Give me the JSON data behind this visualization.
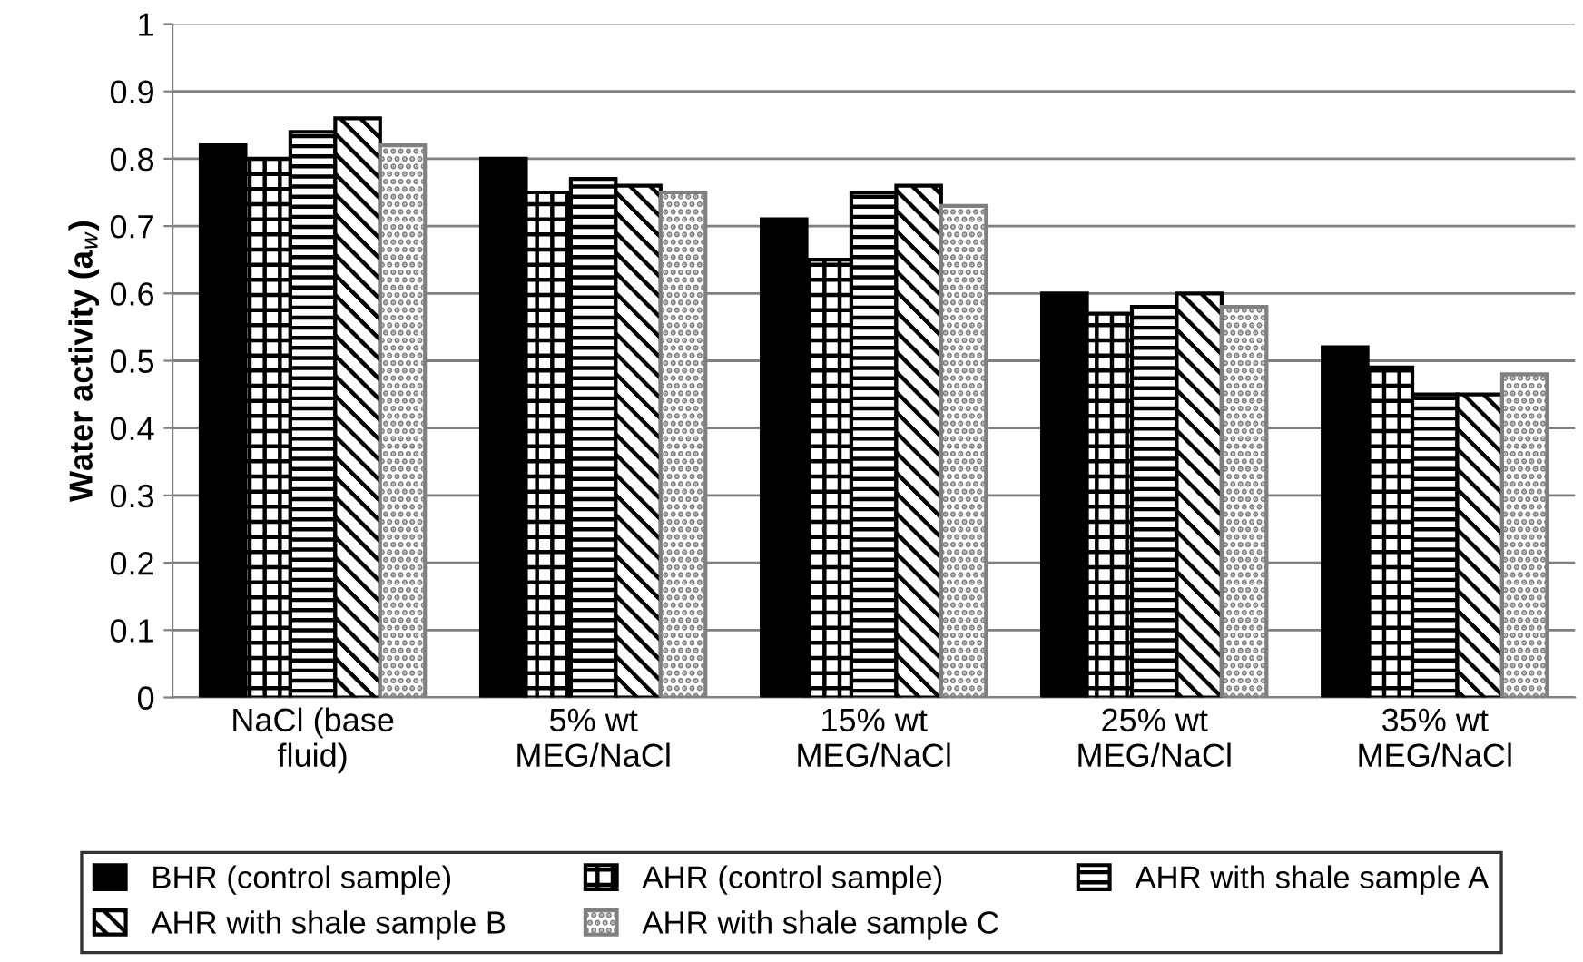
{
  "chart_data": {
    "type": "bar",
    "ylabel": "Water activity (a$_{w}$)",
    "categories": [
      "NaCl (base\nfluid)",
      "5% wt\nMEG/NaCl",
      "15% wt\nMEG/NaCl",
      "25% wt\nMEG/NaCl",
      "35% wt\nMEG/NaCl"
    ],
    "series": [
      {
        "name": "BHR (control sample)",
        "color": "#000000",
        "values": [
          0.82,
          0.8,
          0.71,
          0.6,
          0.52
        ]
      },
      {
        "name": "AHR (control sample)",
        "color": "#000000",
        "values": [
          0.8,
          0.75,
          0.65,
          0.57,
          0.49
        ]
      },
      {
        "name": "AHR with shale sample A",
        "color": "#000000",
        "values": [
          0.84,
          0.77,
          0.75,
          0.58,
          0.45
        ]
      },
      {
        "name": "AHR with shale sample B",
        "color": "#000000",
        "values": [
          0.86,
          0.76,
          0.76,
          0.6,
          0.45
        ]
      },
      {
        "name": "AHR with shale sample C",
        "color": "#808080",
        "values": [
          0.82,
          0.75,
          0.73,
          0.58,
          0.48
        ]
      }
    ],
    "ylim": [
      0,
      1
    ],
    "yticks": [
      0,
      0.1,
      0.2,
      0.3,
      0.4,
      0.5,
      0.6,
      0.7,
      0.8,
      0.9,
      1
    ],
    "grid": "y",
    "legend": "bottom"
  }
}
